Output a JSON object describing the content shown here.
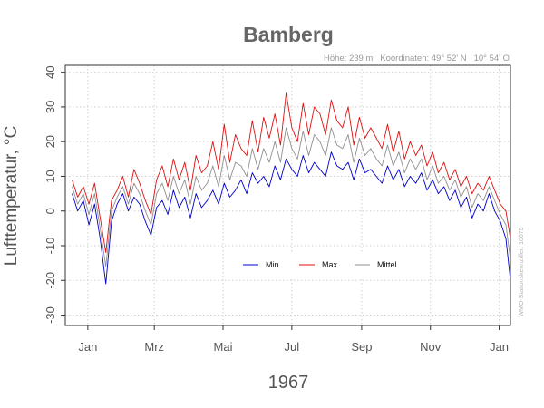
{
  "chart_data": {
    "type": "line",
    "title": "Bamberg",
    "subtitle": "Höhe: 239 m   Koordinaten: 49° 52' N   10° 54' O",
    "side_note": "WMO-Stationskennziffer: 10675",
    "xlabel": "1967",
    "ylabel": "Lufttemperatur, °C",
    "ylim": [
      -33,
      42
    ],
    "yticks": [
      -30,
      -20,
      -10,
      0,
      10,
      20,
      30,
      40
    ],
    "xlim": [
      -5,
      390
    ],
    "xticks": [
      {
        "label": "Jan",
        "day": 15
      },
      {
        "label": "Mrz",
        "day": 74
      },
      {
        "label": "Mai",
        "day": 135
      },
      {
        "label": "Jul",
        "day": 196
      },
      {
        "label": "Sep",
        "day": 258
      },
      {
        "label": "Nov",
        "day": 319
      },
      {
        "label": "Jan",
        "day": 380
      }
    ],
    "grid": true,
    "legend_position": "center-bottom",
    "x_unit": "day of year (1 = 1 Jan 1967)",
    "x": [
      1,
      6,
      11,
      16,
      21,
      26,
      31,
      36,
      41,
      46,
      51,
      56,
      61,
      66,
      71,
      76,
      81,
      86,
      91,
      96,
      101,
      106,
      111,
      116,
      121,
      126,
      131,
      136,
      141,
      146,
      151,
      156,
      161,
      166,
      171,
      176,
      181,
      186,
      191,
      196,
      201,
      206,
      211,
      216,
      221,
      226,
      231,
      236,
      241,
      246,
      251,
      256,
      261,
      266,
      271,
      276,
      281,
      286,
      291,
      296,
      301,
      306,
      311,
      316,
      321,
      326,
      331,
      336,
      341,
      346,
      351,
      356,
      361,
      366,
      371,
      376,
      381,
      386,
      391
    ],
    "series": [
      {
        "name": "Min",
        "color": "#0000cc",
        "values": [
          5,
          0,
          3,
          -4,
          2,
          -8,
          -21,
          -3,
          2,
          5,
          0,
          4,
          2,
          -3,
          -7,
          1,
          3,
          -1,
          6,
          1,
          4,
          -2,
          5,
          1,
          3,
          6,
          2,
          8,
          4,
          6,
          9,
          5,
          11,
          8,
          10,
          7,
          13,
          9,
          15,
          12,
          10,
          16,
          11,
          14,
          12,
          10,
          17,
          13,
          12,
          14,
          9,
          15,
          11,
          12,
          10,
          8,
          13,
          9,
          12,
          7,
          10,
          8,
          11,
          6,
          9,
          5,
          7,
          3,
          6,
          1,
          4,
          -2,
          2,
          0,
          5,
          0,
          -3,
          -8,
          -20
        ]
      },
      {
        "name": "Max",
        "color": "#dd1111",
        "values": [
          9,
          4,
          7,
          2,
          8,
          -2,
          -12,
          3,
          6,
          10,
          4,
          12,
          8,
          3,
          -1,
          9,
          13,
          7,
          15,
          9,
          14,
          6,
          16,
          11,
          13,
          20,
          12,
          25,
          14,
          22,
          18,
          16,
          26,
          17,
          27,
          21,
          28,
          19,
          34,
          24,
          20,
          31,
          22,
          30,
          28,
          22,
          32,
          26,
          24,
          30,
          19,
          27,
          21,
          24,
          21,
          18,
          25,
          17,
          23,
          15,
          20,
          16,
          19,
          13,
          17,
          11,
          14,
          9,
          12,
          7,
          10,
          5,
          8,
          6,
          10,
          6,
          2,
          0,
          -8
        ]
      },
      {
        "name": "Mittel",
        "color": "#8f8f8f",
        "values": [
          7,
          2,
          5,
          -1,
          5,
          -5,
          -16,
          0,
          4,
          7,
          2,
          8,
          5,
          0,
          -4,
          5,
          8,
          3,
          10,
          5,
          9,
          2,
          10,
          6,
          8,
          13,
          7,
          16,
          9,
          14,
          13,
          10,
          18,
          12,
          18,
          14,
          20,
          14,
          24,
          18,
          15,
          23,
          16,
          22,
          20,
          16,
          24,
          19,
          18,
          22,
          14,
          21,
          16,
          18,
          15,
          13,
          19,
          13,
          17,
          11,
          15,
          12,
          15,
          9,
          13,
          8,
          10,
          6,
          9,
          4,
          7,
          1,
          5,
          3,
          7,
          3,
          -1,
          -4,
          -14
        ]
      }
    ]
  }
}
